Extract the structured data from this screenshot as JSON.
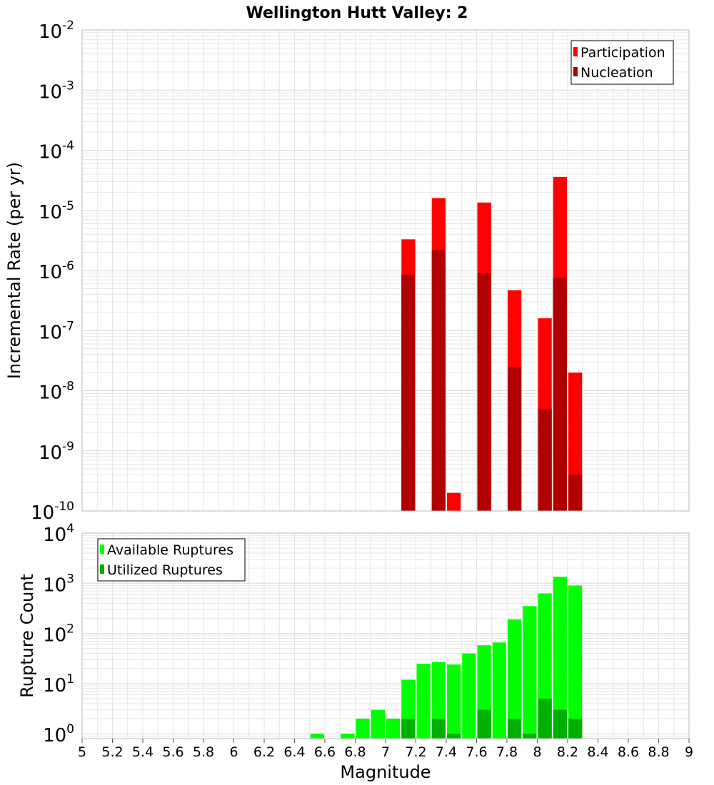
{
  "title": "Wellington Hutt Valley: 2",
  "colors": {
    "participation": "#ff0000",
    "nucleation": "#b00000",
    "available": "#00ff00",
    "utilized": "#00b000",
    "grid": "#e6e6e6"
  },
  "chart_data": [
    {
      "type": "bar",
      "ylabel": "Incremental Rate (per yr)",
      "yscale": "log",
      "ylim": [
        1e-10,
        0.01
      ],
      "xlim": [
        5,
        9
      ],
      "ytick_exponents": [
        -2,
        -3,
        -4,
        -5,
        -6,
        -7,
        -8,
        -9,
        -10
      ],
      "legend_placement": "top-right",
      "series": [
        {
          "name": "Participation",
          "x": [
            7.15,
            7.35,
            7.45,
            7.65,
            7.85,
            8.05,
            8.15,
            8.25
          ],
          "values": [
            3.3e-06,
            1.6e-05,
            2e-10,
            1.35e-05,
            4.7e-07,
            1.6e-07,
            3.6e-05,
            2e-08
          ]
        },
        {
          "name": "Nucleation",
          "x": [
            7.15,
            7.35,
            7.65,
            7.85,
            8.05,
            8.15,
            8.25
          ],
          "values": [
            8.5e-07,
            2.2e-06,
            9e-07,
            2.5e-08,
            5e-09,
            7.5e-07,
            4e-10
          ]
        }
      ]
    },
    {
      "type": "bar",
      "ylabel": "Rupture Count",
      "xlabel": "Magnitude",
      "yscale": "log",
      "ylim": [
        0.8,
        10000
      ],
      "xlim": [
        5,
        9
      ],
      "ytick_exponents": [
        4,
        3,
        2,
        1,
        0
      ],
      "xticks": [
        "5",
        "5.2",
        "5.4",
        "5.6",
        "5.8",
        "6",
        "6.2",
        "6.4",
        "6.6",
        "6.8",
        "7",
        "7.2",
        "7.4",
        "7.6",
        "7.8",
        "8",
        "8.2",
        "8.4",
        "8.6",
        "8.8",
        "9"
      ],
      "legend_placement": "top-left",
      "series": [
        {
          "name": "Available Ruptures",
          "x": [
            6.55,
            6.75,
            6.85,
            6.95,
            7.05,
            7.15,
            7.25,
            7.35,
            7.45,
            7.55,
            7.65,
            7.75,
            7.85,
            7.95,
            8.05,
            8.15,
            8.25
          ],
          "values": [
            1,
            1,
            2,
            3,
            2,
            12,
            25,
            27,
            24,
            40,
            58,
            66,
            190,
            350,
            630,
            1350,
            900
          ]
        },
        {
          "name": "Utilized Ruptures",
          "x": [
            7.15,
            7.35,
            7.45,
            7.65,
            7.85,
            7.95,
            8.05,
            8.15,
            8.25
          ],
          "values": [
            2,
            2,
            1,
            3,
            2,
            1,
            5,
            3,
            2
          ]
        }
      ]
    }
  ]
}
